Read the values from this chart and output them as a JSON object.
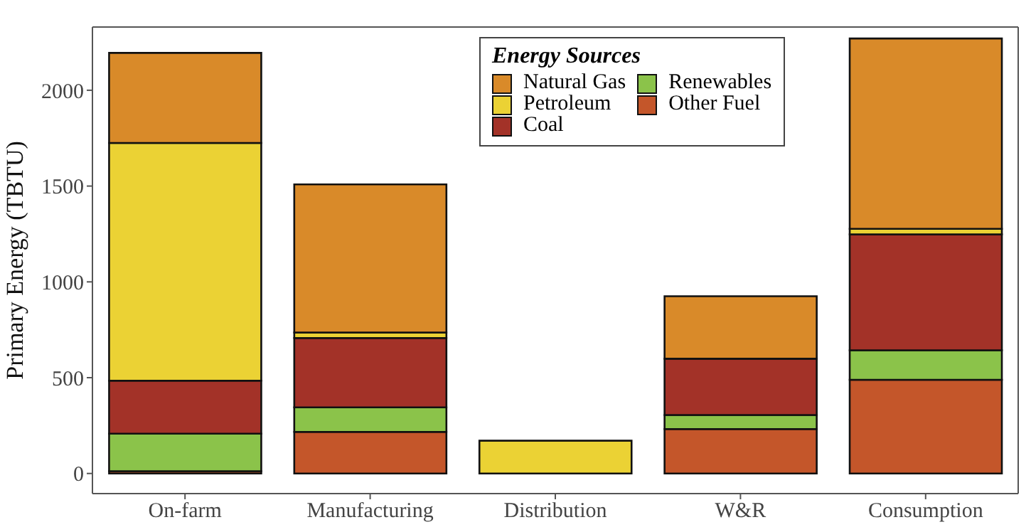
{
  "chart_data": {
    "type": "bar",
    "stacked": true,
    "ylabel": "Primary Energy (TBTU)",
    "legend_title": "Energy Sources",
    "legend": "top right",
    "categories": [
      "On-farm",
      "Manufacturing",
      "Distribution",
      "W&R",
      "Consumption"
    ],
    "ylim": [
      -105,
      2330
    ],
    "yticks": [
      0,
      500,
      1000,
      1500,
      2000
    ],
    "series": [
      {
        "name": "Other Fuel",
        "color": "#c4562a",
        "values": [
          12,
          217,
          null,
          232,
          489
        ]
      },
      {
        "name": "Renewables",
        "color": "#8bc34a",
        "values": [
          196,
          128,
          null,
          73,
          154
        ]
      },
      {
        "name": "Coal",
        "color": "#a33228",
        "values": [
          276,
          362,
          null,
          294,
          605
        ]
      },
      {
        "name": "Petroleum",
        "color": "#ebd234",
        "values": [
          1241,
          29,
          171,
          null,
          29
        ]
      },
      {
        "name": "Natural Gas",
        "color": "#d98a29",
        "values": [
          470,
          773,
          null,
          326,
          993
        ]
      }
    ]
  }
}
